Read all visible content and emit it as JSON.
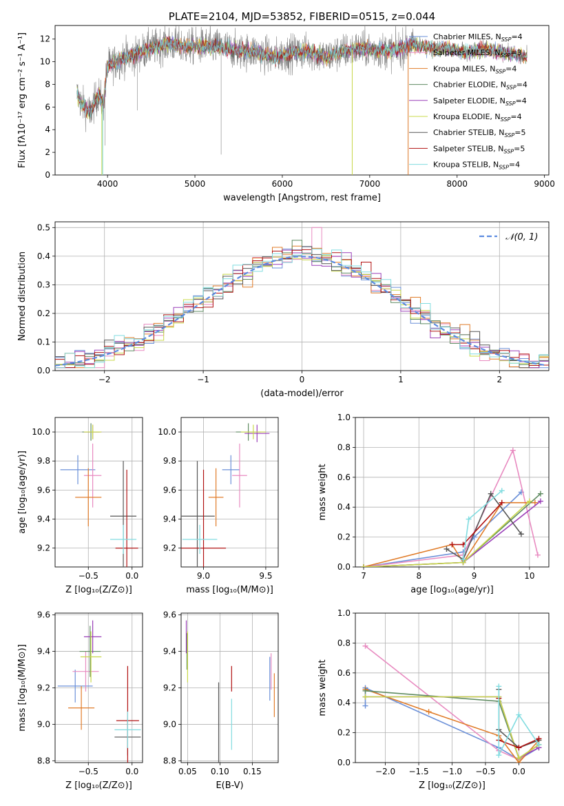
{
  "colors": {
    "chabrier_miles": "#6a8fd8",
    "salpeter_miles": "#e88ac0",
    "kroupa_miles": "#e07b28",
    "chabrier_elodie": "#5e8a60",
    "salpeter_elodie": "#9a3fb8",
    "kroupa_elodie": "#c8d848",
    "chabrier_stelib": "#555555",
    "salpeter_stelib": "#b01010",
    "kroupa_stelib": "#80dce0"
  },
  "chart_data": [
    {
      "id": "spectrum",
      "type": "line",
      "title": "PLATE=2104, MJD=53852, FIBERID=0515, z=0.044",
      "xlabel": "wavelength [Angstrom, rest frame]",
      "ylabel": "Flux [fλ10⁻¹⁷ erg cm⁻² s⁻¹ A⁻¹]",
      "xlim": [
        3400,
        9050
      ],
      "ylim": [
        0,
        13.2
      ],
      "xticks": [
        "4000",
        "5000",
        "6000",
        "7000",
        "8000",
        "9000"
      ],
      "yticks": [
        "0",
        "2",
        "4",
        "6",
        "8",
        "10",
        "12"
      ],
      "grid": false,
      "legend_position": "upper-right",
      "series": [
        {
          "name": "Chabrier MILES, N",
          "sub": "SSP",
          "suffix": "=4",
          "key": "chabrier_miles"
        },
        {
          "name": "Salpeter MILES, N",
          "sub": "SSP",
          "suffix": "=3",
          "key": "salpeter_miles"
        },
        {
          "name": "Kroupa MILES, N",
          "sub": "SSP",
          "suffix": "=4",
          "key": "kroupa_miles"
        },
        {
          "name": "Chabrier ELODIE, N",
          "sub": "SSP",
          "suffix": "=4",
          "key": "chabrier_elodie"
        },
        {
          "name": "Salpeter ELODIE, N",
          "sub": "SSP",
          "suffix": "=4",
          "key": "salpeter_elodie"
        },
        {
          "name": "Kroupa ELODIE, N",
          "sub": "SSP",
          "suffix": "=4",
          "key": "kroupa_elodie"
        },
        {
          "name": "Chabrier STELIB, N",
          "sub": "SSP",
          "suffix": "=5",
          "key": "chabrier_stelib"
        },
        {
          "name": "Salpeter STELIB, N",
          "sub": "SSP",
          "suffix": "=5",
          "key": "salpeter_stelib"
        },
        {
          "name": "Kroupa STELIB, N",
          "sub": "SSP",
          "suffix": "=4",
          "key": "kroupa_stelib"
        }
      ],
      "continuum": [
        [
          3650,
          7.2
        ],
        [
          3700,
          6.3
        ],
        [
          3800,
          5.5
        ],
        [
          3900,
          7.2
        ],
        [
          3950,
          6.0
        ],
        [
          4000,
          9.6
        ],
        [
          4100,
          10.0
        ],
        [
          4200,
          10.4
        ],
        [
          4300,
          10.5
        ],
        [
          4400,
          10.9
        ],
        [
          4500,
          11.2
        ],
        [
          4700,
          11.6
        ],
        [
          4900,
          11.3
        ],
        [
          5100,
          11.4
        ],
        [
          5300,
          11.3
        ],
        [
          5500,
          10.9
        ],
        [
          5700,
          10.9
        ],
        [
          5900,
          10.4
        ],
        [
          6100,
          10.8
        ],
        [
          6300,
          10.9
        ],
        [
          6500,
          10.4
        ],
        [
          6700,
          10.9
        ],
        [
          6900,
          11.2
        ],
        [
          7100,
          11.0
        ],
        [
          7300,
          11.0
        ],
        [
          7500,
          11.6
        ],
        [
          7700,
          11.2
        ],
        [
          7900,
          11.1
        ],
        [
          8100,
          10.8
        ],
        [
          8300,
          11.1
        ],
        [
          8500,
          10.8
        ],
        [
          8700,
          10.6
        ],
        [
          8800,
          10.5
        ]
      ],
      "absorption": [
        {
          "x": 3935,
          "y": 0
        },
        {
          "x": 3970,
          "y": 2.6
        },
        {
          "x": 4340,
          "y": 5.7
        },
        {
          "x": 5300,
          "y": 1.8
        },
        {
          "x": 6800,
          "y": 0
        },
        {
          "x": 7440,
          "y": 0
        }
      ]
    },
    {
      "id": "residuals",
      "type": "bar",
      "xlabel": "(data-model)/error",
      "ylabel": "Normed distribution",
      "xlim": [
        -2.5,
        2.5
      ],
      "ylim": [
        0,
        0.52
      ],
      "xticks": [
        "−2",
        "−1",
        "0",
        "1",
        "2"
      ],
      "yticks": [
        "0.0",
        "0.1",
        "0.2",
        "0.3",
        "0.4",
        "0.5"
      ],
      "grid": true,
      "legend_position": "upper-right",
      "legend_label": "𝒩(0, 1)",
      "bin_width": 0.1,
      "peak_value": 0.5,
      "reference_curve": "normal(0,1)"
    },
    {
      "id": "age_vs_z",
      "type": "scatter",
      "xlabel": "Z [log₁₀(Z/Z⊙)]",
      "ylabel": "age  [log₁₀(age/yr)]",
      "xlim": [
        -0.88,
        0.12
      ],
      "ylim": [
        9.07,
        10.1
      ],
      "xticks": [
        "−0.5",
        "0.0"
      ],
      "yticks": [
        "9.2",
        "9.4",
        "9.6",
        "9.8",
        "10.0"
      ],
      "grid": true,
      "points": [
        {
          "key": "chabrier_miles",
          "x": -0.62,
          "y": 9.74,
          "xerr": 0.2,
          "yerr": 0.1
        },
        {
          "key": "salpeter_miles",
          "x": -0.45,
          "y": 9.7,
          "xerr": 0.1,
          "yerr": 0.22
        },
        {
          "key": "kroupa_miles",
          "x": -0.5,
          "y": 9.55,
          "xerr": 0.15,
          "yerr": 0.2
        },
        {
          "key": "chabrier_elodie",
          "x": -0.47,
          "y": 10.0,
          "xerr": 0.1,
          "yerr": 0.06
        },
        {
          "key": "salpeter_elodie",
          "x": -0.45,
          "y": 10.0,
          "xerr": 0.1,
          "yerr": 0.05
        },
        {
          "key": "kroupa_elodie",
          "x": -0.45,
          "y": 10.0,
          "xerr": 0.1,
          "yerr": 0.05
        },
        {
          "key": "chabrier_stelib",
          "x": -0.1,
          "y": 9.42,
          "xerr": 0.15,
          "yerr": 0.38
        },
        {
          "key": "salpeter_stelib",
          "x": -0.06,
          "y": 9.2,
          "xerr": 0.13,
          "yerr": 0.54
        },
        {
          "key": "kroupa_stelib",
          "x": -0.1,
          "y": 9.26,
          "xerr": 0.15,
          "yerr": 0.1
        }
      ]
    },
    {
      "id": "age_vs_mass",
      "type": "scatter",
      "xlabel": "mass [log₁₀(M/M⊙)]",
      "ylabel": "",
      "xlim": [
        8.82,
        9.6
      ],
      "ylim": [
        9.07,
        10.1
      ],
      "xticks": [
        "9.0",
        "9.5"
      ],
      "yticks": [
        "9.2",
        "9.4",
        "9.6",
        "9.8",
        "10.0"
      ],
      "grid": true,
      "points": [
        {
          "key": "chabrier_miles",
          "x": 9.22,
          "y": 9.74,
          "xerr": 0.07,
          "yerr": 0.1
        },
        {
          "key": "salpeter_miles",
          "x": 9.29,
          "y": 9.7,
          "xerr": 0.06,
          "yerr": 0.22
        },
        {
          "key": "kroupa_miles",
          "x": 9.1,
          "y": 9.55,
          "xerr": 0.06,
          "yerr": 0.2
        },
        {
          "key": "chabrier_elodie",
          "x": 9.36,
          "y": 10.0,
          "xerr": 0.1,
          "yerr": 0.06
        },
        {
          "key": "salpeter_elodie",
          "x": 9.43,
          "y": 9.99,
          "xerr": 0.1,
          "yerr": 0.06
        },
        {
          "key": "kroupa_elodie",
          "x": 9.4,
          "y": 10.0,
          "xerr": 0.1,
          "yerr": 0.05
        },
        {
          "key": "chabrier_stelib",
          "x": 8.95,
          "y": 9.42,
          "xerr": 0.14,
          "yerr": 0.38
        },
        {
          "key": "salpeter_stelib",
          "x": 9.0,
          "y": 9.2,
          "xerr": 0.18,
          "yerr": 0.54
        },
        {
          "key": "kroupa_stelib",
          "x": 8.97,
          "y": 9.26,
          "xerr": 0.14,
          "yerr": 0.1
        }
      ]
    },
    {
      "id": "weight_vs_age",
      "type": "line",
      "xlabel": "age  [log₁₀(age/yr)]",
      "ylabel": "mass weight",
      "xlim": [
        6.85,
        10.35
      ],
      "ylim": [
        0,
        1.0
      ],
      "xticks": [
        "7",
        "8",
        "9",
        "10"
      ],
      "yticks": [
        "0.0",
        "0.2",
        "0.4",
        "0.6",
        "0.8",
        "1.0"
      ],
      "grid": true,
      "series": [
        {
          "key": "chabrier_miles",
          "x": [
            7.0,
            8.8,
            9.0,
            9.85
          ],
          "y": [
            0.0,
            0.1,
            0.2,
            0.5
          ]
        },
        {
          "key": "salpeter_miles",
          "x": [
            7.0,
            8.8,
            9.7,
            10.15
          ],
          "y": [
            0.0,
            0.08,
            0.78,
            0.08
          ]
        },
        {
          "key": "kroupa_miles",
          "x": [
            7.0,
            8.6,
            8.8,
            9.5,
            10.1
          ],
          "y": [
            0.0,
            0.15,
            0.03,
            0.43,
            0.43
          ]
        },
        {
          "key": "chabrier_elodie",
          "x": [
            7.0,
            8.8,
            10.2
          ],
          "y": [
            0.0,
            0.03,
            0.49
          ]
        },
        {
          "key": "salpeter_elodie",
          "x": [
            7.0,
            8.8,
            10.2
          ],
          "y": [
            0.0,
            0.03,
            0.44
          ]
        },
        {
          "key": "kroupa_elodie",
          "x": [
            7.0,
            8.8,
            10.0
          ],
          "y": [
            0.0,
            0.03,
            0.44
          ]
        },
        {
          "key": "chabrier_stelib",
          "x": [
            8.5,
            8.8,
            9.3,
            9.85
          ],
          "y": [
            0.12,
            0.05,
            0.49,
            0.22
          ]
        },
        {
          "key": "salpeter_stelib",
          "x": [
            8.6,
            8.8,
            9.5
          ],
          "y": [
            0.15,
            0.15,
            0.43
          ]
        },
        {
          "key": "kroupa_stelib",
          "x": [
            8.8,
            8.9,
            9.5
          ],
          "y": [
            0.05,
            0.32,
            0.51
          ]
        }
      ]
    },
    {
      "id": "mass_vs_z",
      "type": "scatter",
      "xlabel": "Z [log₁₀(Z/Z⊙)]",
      "ylabel": "mass [log₁₀(M/M⊙)]",
      "xlim": [
        -0.88,
        0.12
      ],
      "ylim": [
        8.79,
        9.61
      ],
      "xticks": [
        "−0.5",
        "0.0"
      ],
      "yticks": [
        "8.8",
        "9.0",
        "9.2",
        "9.4",
        "9.6"
      ],
      "grid": true,
      "points": [
        {
          "key": "chabrier_miles",
          "x": -0.65,
          "y": 9.21,
          "xerr": 0.2,
          "yerr": 0.09
        },
        {
          "key": "salpeter_miles",
          "x": -0.53,
          "y": 9.29,
          "xerr": 0.15,
          "yerr": 0.11
        },
        {
          "key": "kroupa_miles",
          "x": -0.58,
          "y": 9.09,
          "xerr": 0.15,
          "yerr": 0.12
        },
        {
          "key": "chabrier_elodie",
          "x": -0.48,
          "y": 9.4,
          "xerr": 0.12,
          "yerr": 0.14
        },
        {
          "key": "salpeter_elodie",
          "x": -0.45,
          "y": 9.48,
          "xerr": 0.1,
          "yerr": 0.09
        },
        {
          "key": "kroupa_elodie",
          "x": -0.47,
          "y": 9.37,
          "xerr": 0.12,
          "yerr": 0.14
        },
        {
          "key": "chabrier_stelib",
          "x": -0.05,
          "y": 8.93,
          "xerr": 0.15,
          "yerr": 0.1
        },
        {
          "key": "salpeter_stelib",
          "x": -0.05,
          "y": 9.02,
          "xerr": 0.13,
          "yerr": 0.3
        },
        {
          "key": "kroupa_stelib",
          "x": -0.05,
          "y": 8.97,
          "xerr": 0.15,
          "yerr": 0.1
        }
      ]
    },
    {
      "id": "mass_vs_ebv",
      "type": "scatter",
      "xlabel": "E(B-V)",
      "ylabel": "",
      "xlim": [
        0.04,
        0.19
      ],
      "ylim": [
        8.79,
        9.61
      ],
      "xticks": [
        "0.05",
        "0.10",
        "0.15"
      ],
      "yticks": [
        "8.8",
        "9.0",
        "9.2",
        "9.4",
        "9.6"
      ],
      "grid": true,
      "points": [
        {
          "key": "chabrier_miles",
          "x": 0.177,
          "y": 9.25,
          "xerr": 0,
          "yerr": 0.12
        },
        {
          "key": "salpeter_miles",
          "x": 0.179,
          "y": 9.29,
          "xerr": 0,
          "yerr": 0.1
        },
        {
          "key": "kroupa_miles",
          "x": 0.184,
          "y": 9.16,
          "xerr": 0,
          "yerr": 0.12
        },
        {
          "key": "chabrier_elodie",
          "x": 0.049,
          "y": 9.4,
          "xerr": 0,
          "yerr": 0.1
        },
        {
          "key": "salpeter_elodie",
          "x": 0.048,
          "y": 9.48,
          "xerr": 0,
          "yerr": 0.09
        },
        {
          "key": "kroupa_elodie",
          "x": 0.05,
          "y": 9.37,
          "xerr": 0,
          "yerr": 0.14
        },
        {
          "key": "chabrier_stelib",
          "x": 0.098,
          "y": 8.93,
          "xerr": 0,
          "yerr": 0.3
        },
        {
          "key": "salpeter_stelib",
          "x": 0.118,
          "y": 9.25,
          "xerr": 0,
          "yerr": 0.07
        },
        {
          "key": "kroupa_stelib",
          "x": 0.118,
          "y": 9.0,
          "xerr": 0,
          "yerr": 0.14
        }
      ]
    },
    {
      "id": "weight_vs_z",
      "type": "line",
      "xlabel": "Z [log₁₀(Z/Z⊙)]",
      "ylabel": "mass weight",
      "xlim": [
        -2.45,
        0.45
      ],
      "ylim": [
        0,
        1.0
      ],
      "xticks": [
        "−2.0",
        "−1.5",
        "−1.0",
        "−0.5",
        "0.0"
      ],
      "yticks": [
        "0.0",
        "0.2",
        "0.4",
        "0.6",
        "0.8",
        "1.0"
      ],
      "grid": true,
      "series": [
        {
          "key": "chabrier_miles",
          "x": [
            -2.3,
            -2.3,
            -0.3,
            0.0,
            0.3
          ],
          "y": [
            0.38,
            0.5,
            0.1,
            0.02,
            0.1
          ]
        },
        {
          "key": "salpeter_miles",
          "x": [
            -2.3,
            -0.3,
            0.0,
            0.3
          ],
          "y": [
            0.78,
            0.08,
            0.02,
            0.12
          ]
        },
        {
          "key": "kroupa_miles",
          "x": [
            -2.3,
            -1.35,
            -0.3,
            0.0,
            0.3
          ],
          "y": [
            0.49,
            0.34,
            0.18,
            0.0,
            0.15
          ]
        },
        {
          "key": "chabrier_elodie",
          "x": [
            -2.3,
            -0.3,
            0.0,
            0.3
          ],
          "y": [
            0.48,
            0.41,
            0.03,
            0.12
          ]
        },
        {
          "key": "salpeter_elodie",
          "x": [
            -2.3,
            -0.3,
            0.0,
            0.3
          ],
          "y": [
            0.44,
            0.44,
            0.03,
            0.1
          ]
        },
        {
          "key": "kroupa_elodie",
          "x": [
            -2.3,
            -0.3,
            0.0,
            0.3
          ],
          "y": [
            0.44,
            0.44,
            0.03,
            0.12
          ]
        },
        {
          "key": "chabrier_stelib",
          "x": [
            -0.3,
            -0.3,
            0.0,
            0.3
          ],
          "y": [
            0.49,
            0.22,
            0.1,
            0.15
          ]
        },
        {
          "key": "salpeter_stelib",
          "x": [
            -0.3,
            -0.3,
            0.0,
            0.3
          ],
          "y": [
            0.43,
            0.15,
            0.1,
            0.16
          ]
        },
        {
          "key": "kroupa_stelib",
          "x": [
            -0.3,
            -0.3,
            0.0,
            0.3
          ],
          "y": [
            0.51,
            0.05,
            0.32,
            0.12
          ]
        }
      ]
    }
  ]
}
